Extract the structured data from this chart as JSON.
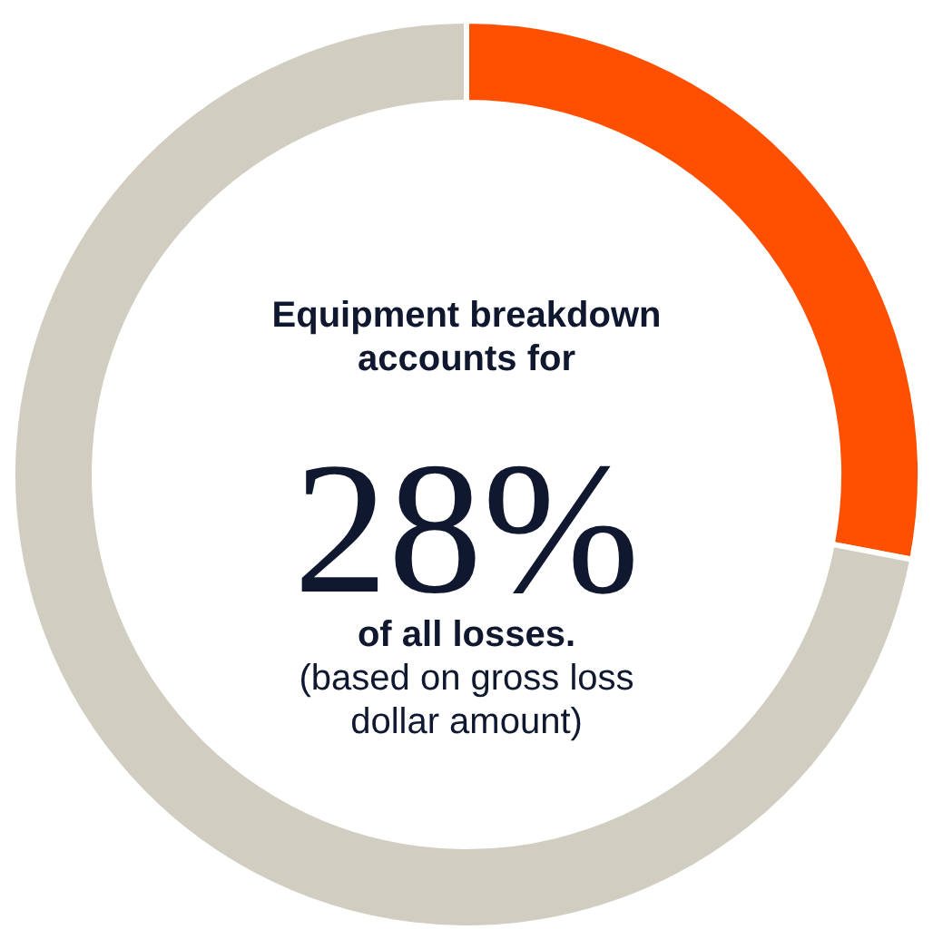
{
  "chart_data": {
    "type": "donut",
    "categories": [
      null,
      null
    ],
    "values": [
      28,
      72
    ],
    "colors": [
      "#fe5000",
      "#d1cdc1"
    ],
    "annotations": [
      "Equipment breakdown accounts for",
      "28%",
      "of all losses.",
      "(based on gross loss dollar amount)"
    ]
  }
}
